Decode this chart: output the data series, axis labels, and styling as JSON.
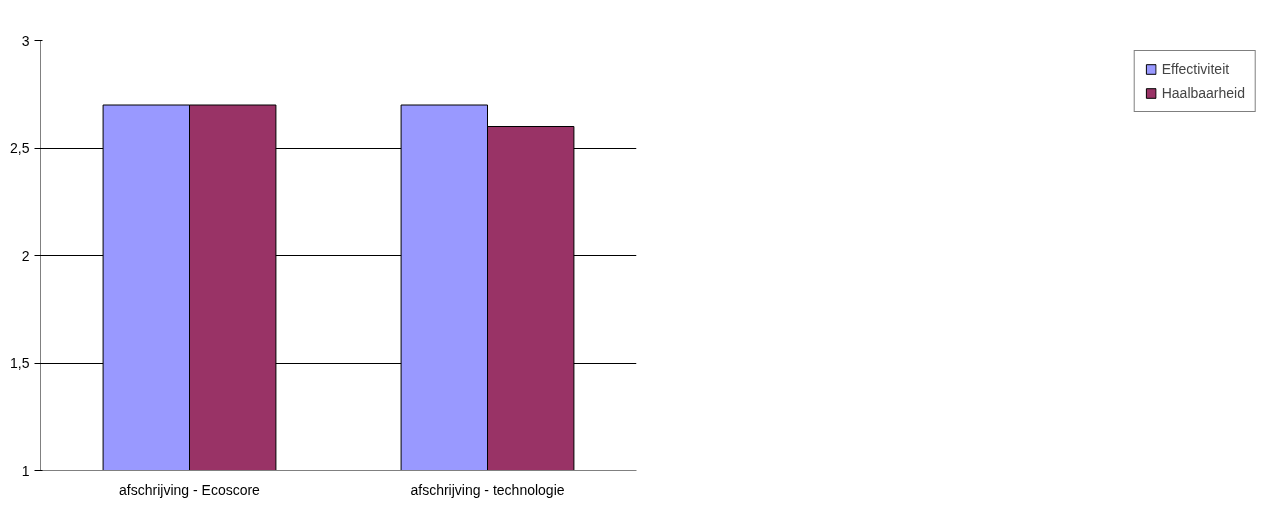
{
  "chart_data": {
    "type": "bar",
    "categories": [
      "afschrijving - Ecoscore",
      "afschrijving - technologie"
    ],
    "series": [
      {
        "name": "Effectiviteit",
        "color": "#9999ff",
        "values": [
          2.7,
          2.7
        ]
      },
      {
        "name": "Haalbaarheid",
        "color": "#993366",
        "values": [
          2.7,
          2.6
        ]
      }
    ],
    "ylim": [
      1,
      3
    ],
    "yticks": [
      1,
      {
        "value": 1.5,
        "label": "1,5"
      },
      2,
      {
        "value": 2.5,
        "label": "2,5"
      },
      3
    ],
    "grid": "y",
    "legend": "right"
  }
}
